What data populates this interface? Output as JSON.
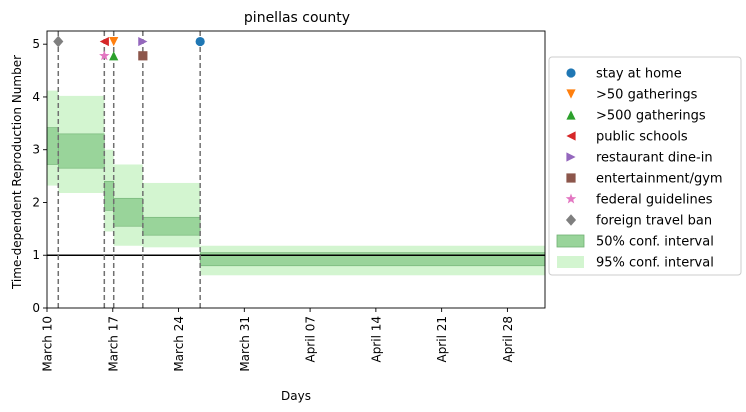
{
  "chart_data": {
    "type": "step-interval",
    "title": "pinellas county",
    "xlabel": "Days",
    "ylabel": "Time-dependent Reproduction Number",
    "x_ticks": [
      "March 10",
      "March 17",
      "March 24",
      "March 31",
      "April 07",
      "April 14",
      "April 21",
      "April 28"
    ],
    "x_tick_days": [
      0,
      7,
      14,
      21,
      28,
      35,
      42,
      49
    ],
    "xlim_days": [
      0,
      53
    ],
    "x_start": "March 10",
    "y_ticks": [
      "0",
      "1",
      "2",
      "3",
      "4",
      "5"
    ],
    "y_tick_values": [
      0,
      1,
      2,
      3,
      4,
      5
    ],
    "ylim": [
      0,
      5.25
    ],
    "reference_line_y": 1,
    "intervention_lines_days": [
      1.2,
      6.1,
      7.1,
      10.2,
      16.3
    ],
    "segments": [
      {
        "start": 0,
        "end": 1.2,
        "ci50": [
          2.72,
          3.42
        ],
        "ci95": [
          2.32,
          4.12
        ]
      },
      {
        "start": 1.2,
        "end": 6.1,
        "ci50": [
          2.65,
          3.3
        ],
        "ci95": [
          2.18,
          4.02
        ]
      },
      {
        "start": 6.1,
        "end": 7.1,
        "ci50": [
          1.85,
          2.4
        ],
        "ci95": [
          1.45,
          3.0
        ]
      },
      {
        "start": 7.1,
        "end": 10.2,
        "ci50": [
          1.55,
          2.08
        ],
        "ci95": [
          1.18,
          2.72
        ]
      },
      {
        "start": 10.2,
        "end": 16.3,
        "ci50": [
          1.38,
          1.72
        ],
        "ci95": [
          1.15,
          2.37
        ]
      },
      {
        "start": 16.3,
        "end": 53,
        "ci50": [
          0.8,
          1.05
        ],
        "ci95": [
          0.62,
          1.18
        ]
      }
    ],
    "markers": [
      {
        "name": "stay at home",
        "day": 16.3,
        "y": 5.05,
        "shape": "circle",
        "color": "#1f77b4"
      },
      {
        "name": ">50 gatherings",
        "day": 7.1,
        "y": 5.05,
        "shape": "triangle-down",
        "color": "#ff7f0e"
      },
      {
        "name": ">500 gatherings",
        "day": 7.1,
        "y": 4.78,
        "shape": "triangle-up",
        "color": "#2ca02c"
      },
      {
        "name": "public schools",
        "day": 6.1,
        "y": 5.05,
        "shape": "triangle-left",
        "color": "#d62728"
      },
      {
        "name": "restaurant dine-in",
        "day": 10.2,
        "y": 5.05,
        "shape": "triangle-right",
        "color": "#9467bd"
      },
      {
        "name": "entertainment/gym",
        "day": 10.2,
        "y": 4.78,
        "shape": "square",
        "color": "#8c564b"
      },
      {
        "name": "federal guidelines",
        "day": 6.1,
        "y": 4.78,
        "shape": "star",
        "color": "#e377c2"
      },
      {
        "name": "foreign travel ban",
        "day": 1.2,
        "y": 5.05,
        "shape": "diamond",
        "color": "#7f7f7f"
      }
    ],
    "legend": {
      "placement": "right-outside",
      "entries": [
        {
          "label": "stay at home",
          "kind": "marker",
          "shape": "circle",
          "color": "#1f77b4"
        },
        {
          "label": ">50 gatherings",
          "kind": "marker",
          "shape": "triangle-down",
          "color": "#ff7f0e"
        },
        {
          "label": ">500 gatherings",
          "kind": "marker",
          "shape": "triangle-up",
          "color": "#2ca02c"
        },
        {
          "label": "public schools",
          "kind": "marker",
          "shape": "triangle-left",
          "color": "#d62728"
        },
        {
          "label": "restaurant dine-in",
          "kind": "marker",
          "shape": "triangle-right",
          "color": "#9467bd"
        },
        {
          "label": "entertainment/gym",
          "kind": "marker",
          "shape": "square",
          "color": "#8c564b"
        },
        {
          "label": "federal guidelines",
          "kind": "marker",
          "shape": "star",
          "color": "#e377c2"
        },
        {
          "label": "foreign travel ban",
          "kind": "marker",
          "shape": "diamond",
          "color": "#7f7f7f"
        },
        {
          "label": "50% conf. interval",
          "kind": "patch",
          "color": "#99d49a"
        },
        {
          "label": "95% conf. interval",
          "kind": "patch",
          "color": "#d3f5d0"
        }
      ]
    },
    "colors": {
      "ci50": "#99d49a",
      "ci50_edge": "#6fb072",
      "ci95": "#d3f5d0",
      "vline": "#707070",
      "refline": "#000000"
    }
  }
}
